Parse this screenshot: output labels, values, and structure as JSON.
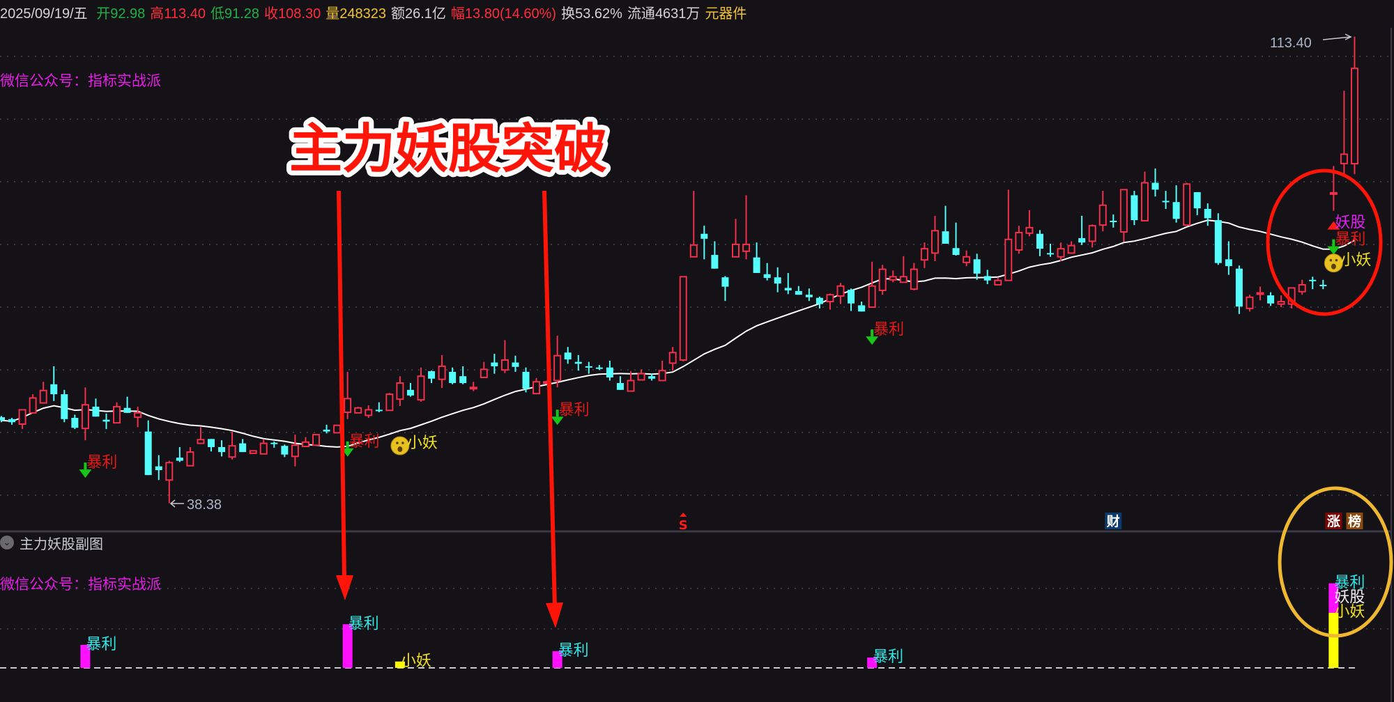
{
  "header": {
    "date": {
      "text": "2025/09/19/五",
      "color": "#d4d4d8"
    },
    "items": [
      {
        "label": "开",
        "value": "92.98",
        "color": "#1fb045"
      },
      {
        "label": "高",
        "value": "113.40",
        "color": "#ff2d3c"
      },
      {
        "label": "低",
        "value": "91.28",
        "color": "#1fb045"
      },
      {
        "label": "收",
        "value": "108.30",
        "color": "#ff2d3c"
      },
      {
        "label": "量",
        "value": "248323",
        "color": "#f2c230"
      },
      {
        "label": "额",
        "value": "26.1亿",
        "color": "#d4d4d8"
      },
      {
        "label": "幅",
        "value": "13.80(14.60%)",
        "color": "#ff2d3c"
      },
      {
        "label": "换",
        "value": "53.62%",
        "color": "#d4d4d8"
      },
      {
        "label": "流通",
        "value": "4631万",
        "color": "#d4d4d8"
      },
      {
        "label": "",
        "value": "元器件",
        "color": "#f2c230"
      }
    ]
  },
  "main_watermark": "微信公众号：指标实战派",
  "sub_chart": {
    "title": "主力妖股副图",
    "watermark": "微信公众号：指标实战派",
    "bars": [
      {
        "index": 8,
        "series": "暴利",
        "value": 0.58
      },
      {
        "index": 33,
        "series": "暴利",
        "value": 1.1
      },
      {
        "index": 38,
        "series": "小妖",
        "value": 0.16
      },
      {
        "index": 53,
        "series": "暴利",
        "value": 0.42
      },
      {
        "index": 83,
        "series": "暴利",
        "value": 0.26
      },
      {
        "index": 127,
        "series": "小妖",
        "value": 1.39
      },
      {
        "index": 127,
        "series": "妖股",
        "value": 0.74
      }
    ],
    "labels": [
      {
        "index": 8,
        "text": "暴利",
        "color": "#2ee6e6"
      },
      {
        "index": 33,
        "text": "暴利",
        "color": "#2ee6e6"
      },
      {
        "index": 38,
        "text": "小妖",
        "color": "#f0e020"
      },
      {
        "index": 53,
        "text": "暴利",
        "color": "#2ee6e6"
      },
      {
        "index": 83,
        "text": "暴利",
        "color": "#2ee6e6"
      },
      {
        "index": 127,
        "text": "暴利",
        "color": "#2ee6e6"
      },
      {
        "index": 127,
        "text": "妖股",
        "color": "#f0f0f0"
      },
      {
        "index": 127,
        "text": "小妖",
        "color": "#f0e020"
      }
    ],
    "series_colors": {
      "暴利": "#ff10ff",
      "妖股": "#ff10ff",
      "小妖": "#ffff00"
    }
  },
  "signals": [
    {
      "index": 8,
      "label": "暴利"
    },
    {
      "index": 33,
      "label": "暴利"
    },
    {
      "index": 38,
      "label": "小妖"
    },
    {
      "index": 53,
      "label": "暴利"
    },
    {
      "index": 83,
      "label": "暴利"
    },
    {
      "index": 127,
      "label": "妖股"
    },
    {
      "index": 127,
      "label": "暴利"
    },
    {
      "index": 127,
      "label": "小妖"
    }
  ],
  "bottom_markers": [
    {
      "index": 65,
      "text": "S",
      "bg": "",
      "color": "#ff1a1a"
    },
    {
      "index": 106,
      "text": "财",
      "bg": "#0c3a6c",
      "color": "#ffffff"
    },
    {
      "index": 127,
      "text": "涨",
      "bg": "#7a0606",
      "color": "#ffffff"
    },
    {
      "index": 129,
      "text": "榜",
      "bg": "#8a4a0e",
      "color": "#ffffff"
    }
  ],
  "price_labels": {
    "high": "113.40",
    "low": "38.38"
  },
  "annotation": {
    "headline": "主力妖股突破"
  },
  "colors": {
    "up": "#f2304c",
    "down": "#54fcfc",
    "ma": "#ffffff",
    "grid": "#3a3a46",
    "signal_arrow": "#18c418",
    "baoli_text": "#e81818",
    "yaogu_text": "#e020f0",
    "xiaoyao_text": "#f0e020",
    "annotation_red": "#ff1408",
    "circle_red": "#ff1408",
    "circle_orange": "#f0b830"
  },
  "chart_data": {
    "type": "candlestick",
    "fields": [
      "open",
      "high",
      "low",
      "close"
    ],
    "ohlc": [
      [
        52.2,
        52.4,
        51.4,
        51.7
      ],
      [
        51.9,
        52.1,
        51.0,
        51.4
      ],
      [
        51.1,
        53.4,
        50.3,
        53.4
      ],
      [
        52.9,
        55.9,
        52.9,
        55.3
      ],
      [
        54.5,
        57.9,
        54.5,
        56.5
      ],
      [
        57.5,
        60.4,
        54.8,
        55.9
      ],
      [
        55.9,
        56.6,
        51.4,
        51.9
      ],
      [
        52.1,
        52.6,
        50.3,
        50.5
      ],
      [
        50.4,
        57.0,
        48.5,
        54.2
      ],
      [
        53.9,
        55.2,
        52.3,
        52.3
      ],
      [
        51.8,
        52.8,
        50.3,
        51.5
      ],
      [
        51.3,
        54.6,
        51.3,
        53.9
      ],
      [
        53.7,
        55.5,
        52.9,
        52.9
      ],
      [
        52.2,
        53.9,
        50.6,
        52.9
      ],
      [
        49.9,
        51.7,
        42.9,
        42.9
      ],
      [
        44.3,
        46.1,
        42.1,
        43.7
      ],
      [
        42.1,
        45.2,
        38.38,
        44.9
      ],
      [
        45.7,
        47.4,
        45.0,
        45.2
      ],
      [
        44.4,
        47.4,
        44.4,
        46.6
      ],
      [
        48.0,
        50.6,
        48.0,
        48.6
      ],
      [
        48.7,
        48.7,
        46.7,
        47.4
      ],
      [
        47.4,
        48.5,
        45.9,
        46.6
      ],
      [
        45.8,
        49.9,
        45.4,
        47.6
      ],
      [
        48.0,
        48.7,
        46.6,
        46.6
      ],
      [
        46.4,
        46.8,
        46.4,
        46.8
      ],
      [
        46.3,
        48.7,
        46.3,
        48.0
      ],
      [
        48.1,
        48.3,
        47.3,
        48.0
      ],
      [
        47.6,
        47.8,
        45.8,
        46.2
      ],
      [
        45.9,
        49.4,
        44.3,
        47.7
      ],
      [
        47.5,
        49.0,
        47.5,
        48.2
      ],
      [
        47.7,
        49.4,
        47.7,
        49.4
      ],
      [
        50.2,
        51.0,
        49.6,
        49.9
      ],
      [
        49.7,
        50.9,
        49.7,
        50.9
      ],
      [
        53.0,
        59.5,
        51.9,
        55.2
      ],
      [
        52.9,
        53.9,
        52.9,
        53.7
      ],
      [
        52.5,
        54.1,
        52.1,
        53.4
      ],
      [
        53.4,
        54.6,
        53.0,
        53.2
      ],
      [
        53.3,
        56.1,
        53.3,
        55.9
      ],
      [
        55.1,
        58.8,
        54.0,
        57.7
      ],
      [
        56.6,
        57.7,
        55.5,
        55.7
      ],
      [
        55.0,
        60.2,
        54.7,
        58.8
      ],
      [
        59.6,
        59.7,
        57.7,
        58.4
      ],
      [
        58.3,
        62.2,
        56.9,
        60.4
      ],
      [
        59.5,
        60.2,
        57.5,
        57.7
      ],
      [
        58.8,
        60.4,
        57.5,
        57.7
      ],
      [
        56.9,
        57.9,
        56.4,
        57.0
      ],
      [
        58.6,
        61.1,
        58.6,
        59.9
      ],
      [
        61.0,
        62.4,
        59.2,
        60.4
      ],
      [
        59.8,
        64.6,
        59.3,
        61.4
      ],
      [
        61.0,
        62.1,
        59.5,
        60.3
      ],
      [
        59.5,
        60.2,
        56.2,
        56.8
      ],
      [
        56.0,
        58.5,
        56.0,
        57.9
      ],
      [
        57.7,
        58.1,
        57.5,
        57.9
      ],
      [
        58.1,
        65.3,
        57.0,
        62.1
      ],
      [
        62.6,
        63.5,
        60.8,
        61.5
      ],
      [
        61.1,
        62.2,
        59.7,
        60.8
      ],
      [
        60.4,
        61.1,
        59.2,
        60.2
      ],
      [
        60.2,
        60.6,
        59.8,
        60.0
      ],
      [
        60.2,
        61.3,
        58.1,
        58.6
      ],
      [
        57.7,
        58.8,
        56.6,
        56.6
      ],
      [
        56.4,
        59.6,
        56.4,
        58.1
      ],
      [
        58.2,
        59.9,
        58.1,
        59.2
      ],
      [
        58.8,
        59.2,
        58.1,
        58.4
      ],
      [
        58.1,
        61.3,
        58.1,
        59.7
      ],
      [
        60.9,
        63.5,
        59.7,
        62.6
      ],
      [
        61.4,
        74.8,
        61.2,
        74.8
      ],
      [
        78.0,
        88.6,
        78.0,
        79.9
      ],
      [
        81.7,
        83.0,
        77.6,
        80.9
      ],
      [
        78.3,
        80.5,
        76.1,
        76.1
      ],
      [
        74.7,
        74.9,
        70.9,
        73.2
      ],
      [
        78.0,
        84.1,
        78.0,
        80.0
      ],
      [
        78.9,
        87.9,
        77.6,
        80.0
      ],
      [
        77.9,
        80.3,
        75.4,
        75.4
      ],
      [
        75.2,
        77.0,
        74.2,
        74.6
      ],
      [
        74.7,
        76.3,
        72.3,
        73.7
      ],
      [
        73.0,
        75.4,
        72.0,
        72.6
      ],
      [
        72.5,
        73.3,
        71.9,
        71.9
      ],
      [
        71.9,
        72.9,
        70.9,
        71.5
      ],
      [
        71.4,
        71.6,
        69.7,
        70.4
      ],
      [
        70.8,
        72.1,
        69.5,
        71.9
      ],
      [
        71.7,
        73.8,
        70.4,
        73.3
      ],
      [
        72.7,
        72.9,
        69.3,
        70.5
      ],
      [
        70.2,
        70.8,
        69.2,
        69.2
      ],
      [
        69.9,
        77.2,
        69.9,
        73.3
      ],
      [
        72.6,
        76.7,
        71.9,
        76.0
      ],
      [
        74.3,
        75.8,
        73.9,
        74.8
      ],
      [
        73.9,
        78.1,
        73.9,
        74.8
      ],
      [
        72.8,
        77.0,
        72.6,
        76.0
      ],
      [
        77.5,
        80.3,
        76.2,
        79.3
      ],
      [
        78.6,
        84.6,
        77.3,
        82.2
      ],
      [
        82.1,
        86.2,
        80.1,
        80.1
      ],
      [
        79.4,
        83.5,
        78.2,
        78.3
      ],
      [
        77.1,
        79.0,
        76.5,
        78.0
      ],
      [
        77.6,
        78.5,
        74.3,
        75.3
      ],
      [
        74.9,
        75.9,
        73.6,
        74.2
      ],
      [
        73.5,
        74.7,
        73.5,
        74.2
      ],
      [
        74.2,
        88.8,
        74.2,
        80.8
      ],
      [
        79.1,
        83.0,
        78.5,
        81.9
      ],
      [
        81.8,
        85.5,
        81.3,
        82.7
      ],
      [
        81.7,
        82.3,
        78.1,
        79.3
      ],
      [
        78.6,
        80.1,
        78.0,
        78.5
      ],
      [
        78.0,
        80.3,
        77.3,
        79.3
      ],
      [
        78.6,
        80.5,
        78.6,
        79.8
      ],
      [
        81.0,
        84.6,
        79.9,
        80.3
      ],
      [
        80.5,
        83.2,
        79.5,
        83.0
      ],
      [
        83.1,
        88.6,
        82.1,
        86.3
      ],
      [
        83.8,
        84.8,
        82.7,
        83.7
      ],
      [
        82.0,
        88.8,
        80.4,
        88.8
      ],
      [
        87.9,
        88.6,
        83.1,
        83.9
      ],
      [
        83.8,
        91.7,
        83.8,
        89.9
      ],
      [
        89.9,
        92.2,
        87.7,
        88.8
      ],
      [
        87.0,
        88.6,
        85.7,
        86.9
      ],
      [
        86.8,
        89.5,
        83.5,
        84.1
      ],
      [
        83.1,
        89.9,
        83.1,
        89.7
      ],
      [
        88.4,
        88.4,
        84.7,
        85.8
      ],
      [
        85.7,
        86.6,
        83.0,
        84.2
      ],
      [
        83.9,
        85.0,
        76.7,
        77.0
      ],
      [
        77.6,
        80.5,
        75.1,
        76.5
      ],
      [
        76.1,
        76.6,
        68.8,
        70.0
      ],
      [
        69.7,
        71.9,
        69.2,
        71.5
      ],
      [
        72.1,
        73.2,
        71.0,
        72.2
      ],
      [
        71.8,
        72.3,
        70.1,
        70.5
      ],
      [
        70.4,
        71.8,
        69.9,
        70.8
      ],
      [
        70.4,
        73.0,
        69.7,
        73.0
      ],
      [
        72.4,
        74.3,
        71.9,
        73.5
      ],
      [
        74.3,
        74.8,
        72.8,
        74.2
      ],
      [
        73.5,
        74.3,
        72.8,
        73.4
      ],
      [
        88.1,
        92.6,
        85.4,
        88.3
      ],
      [
        93.0,
        104.7,
        91.1,
        94.5
      ],
      [
        92.98,
        113.4,
        91.28,
        108.3
      ]
    ],
    "overlay": "moving average (white line)",
    "grid": true
  }
}
